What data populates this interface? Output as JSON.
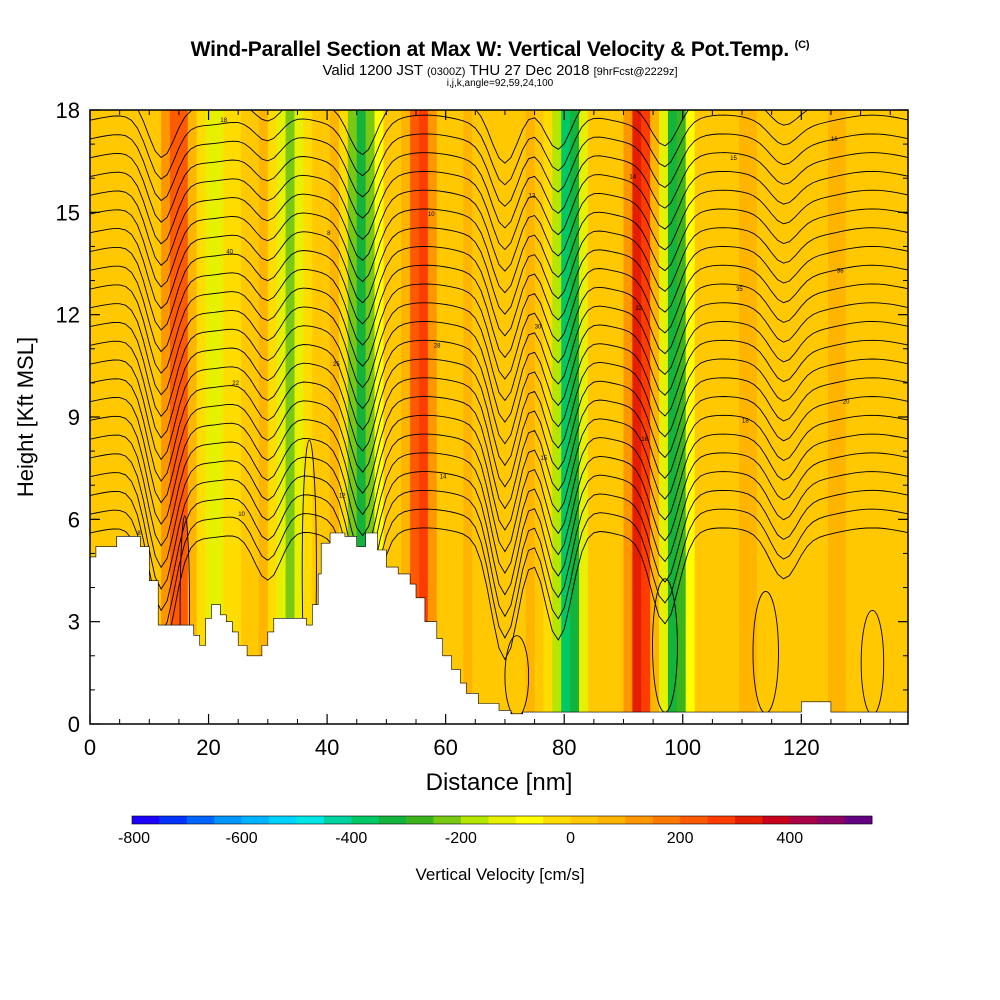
{
  "title": {
    "main": "Wind-Parallel Section at Max W: Vertical Velocity & Pot.Temp.",
    "copyright": "(C)",
    "valid_prefix": "Valid 1200 JST",
    "valid_utc": "(0300Z)",
    "valid_date": "THU 27 Dec 2018",
    "forecast": "[9hrFcst@2229z]",
    "indices": "i,j,k,angle=92,59,24,100"
  },
  "chart_data": {
    "type": "heatmap",
    "xlabel": "Distance [nm]",
    "ylabel": "Height [Kft MSL]",
    "xlim": [
      0,
      138
    ],
    "ylim": [
      0,
      18
    ],
    "x_ticks": [
      0,
      20,
      40,
      60,
      80,
      100,
      120
    ],
    "y_ticks": [
      0,
      3,
      6,
      9,
      12,
      15,
      18
    ],
    "colorbar": {
      "label": "Vertical Velocity [cm/s]",
      "range": [
        -800,
        550
      ],
      "tick_values": [
        -800,
        -600,
        -400,
        -200,
        0,
        200,
        400
      ],
      "tick_labels": [
        "-800",
        "-600",
        "-400",
        "-200",
        "0",
        "200",
        "400"
      ],
      "colors": [
        "#1e00ff",
        "#0032ff",
        "#0064ff",
        "#0096ff",
        "#00b4ff",
        "#00d2ff",
        "#00e6e6",
        "#00d2a0",
        "#00c864",
        "#14b43c",
        "#3cb41e",
        "#78c814",
        "#b4e600",
        "#e6f000",
        "#ffff00",
        "#ffdc00",
        "#ffc800",
        "#ffb400",
        "#ff9600",
        "#ff7800",
        "#ff5a00",
        "#ff3c00",
        "#e61e00",
        "#c8001e",
        "#aa0046",
        "#8c0064",
        "#640082"
      ]
    },
    "velocity_bands": [
      {
        "x": 14,
        "value": 250,
        "note": "updraft"
      },
      {
        "x": 20,
        "value": -130,
        "note": "downdraft"
      },
      {
        "x": 28,
        "value": 60
      },
      {
        "x": 33,
        "value": -220,
        "note": "downdraft"
      },
      {
        "x": 40,
        "value": 60
      },
      {
        "x": 45,
        "value": -330,
        "note": "downdraft"
      },
      {
        "x": 55,
        "value": 300,
        "note": "updraft"
      },
      {
        "x": 63,
        "value": 60
      },
      {
        "x": 73,
        "value": 60
      },
      {
        "x": 80,
        "value": -380,
        "note": "downdraft"
      },
      {
        "x": 92,
        "value": 320,
        "note": "updraft"
      },
      {
        "x": 98,
        "value": -330,
        "note": "downdraft"
      },
      {
        "x": 110,
        "value": 80
      },
      {
        "x": 125,
        "value": 70
      }
    ],
    "terrain_kft": [
      [
        0,
        4.9
      ],
      [
        1,
        4.9
      ],
      [
        1,
        5.2
      ],
      [
        4.5,
        5.2
      ],
      [
        4.5,
        5.5
      ],
      [
        8.5,
        5.5
      ],
      [
        8.5,
        5.2
      ],
      [
        10,
        5.2
      ],
      [
        10,
        4.2
      ],
      [
        11.5,
        4.2
      ],
      [
        11.5,
        2.9
      ],
      [
        17.5,
        2.9
      ],
      [
        17.5,
        2.6
      ],
      [
        18.5,
        2.6
      ],
      [
        18.5,
        2.3
      ],
      [
        19.5,
        2.3
      ],
      [
        19.5,
        3.1
      ],
      [
        20.5,
        3.1
      ],
      [
        20.5,
        3.5
      ],
      [
        22,
        3.5
      ],
      [
        22,
        3.2
      ],
      [
        23,
        3.2
      ],
      [
        23,
        3.0
      ],
      [
        24,
        3.0
      ],
      [
        24,
        2.7
      ],
      [
        25,
        2.7
      ],
      [
        25,
        2.3
      ],
      [
        26.5,
        2.3
      ],
      [
        26.5,
        2.0
      ],
      [
        29,
        2.0
      ],
      [
        29,
        2.3
      ],
      [
        30,
        2.3
      ],
      [
        30,
        2.7
      ],
      [
        31,
        2.7
      ],
      [
        31,
        3.1
      ],
      [
        36.5,
        3.1
      ],
      [
        36.5,
        2.9
      ],
      [
        37.5,
        2.9
      ],
      [
        37.5,
        3.5
      ],
      [
        38.5,
        3.5
      ],
      [
        38.5,
        4.4
      ],
      [
        39,
        4.4
      ],
      [
        39,
        5.3
      ],
      [
        40.5,
        5.3
      ],
      [
        40.5,
        5.6
      ],
      [
        43,
        5.6
      ],
      [
        43,
        5.5
      ],
      [
        45,
        5.5
      ],
      [
        45,
        5.2
      ],
      [
        46.5,
        5.2
      ],
      [
        46.5,
        5.6
      ],
      [
        48.5,
        5.6
      ],
      [
        48.5,
        5.1
      ],
      [
        50,
        5.1
      ],
      [
        50,
        4.6
      ],
      [
        52,
        4.6
      ],
      [
        52,
        4.4
      ],
      [
        54,
        4.4
      ],
      [
        54,
        4.1
      ],
      [
        55,
        4.1
      ],
      [
        55,
        3.7
      ],
      [
        56.5,
        3.7
      ],
      [
        56.5,
        3.0
      ],
      [
        58.5,
        3.0
      ],
      [
        58.5,
        2.5
      ],
      [
        59.5,
        2.5
      ],
      [
        59.5,
        2.0
      ],
      [
        61,
        2.0
      ],
      [
        61,
        1.6
      ],
      [
        62.5,
        1.6
      ],
      [
        62.5,
        1.2
      ],
      [
        63.5,
        1.2
      ],
      [
        63.5,
        0.9
      ],
      [
        65.5,
        0.9
      ],
      [
        65.5,
        0.6
      ],
      [
        69,
        0.6
      ],
      [
        69,
        0.4
      ],
      [
        71,
        0.4
      ],
      [
        71,
        0.3
      ],
      [
        73,
        0.3
      ],
      [
        73,
        0.35
      ],
      [
        120,
        0.35
      ],
      [
        120,
        0.65
      ],
      [
        125,
        0.65
      ],
      [
        125,
        0.35
      ],
      [
        138,
        0.35
      ]
    ],
    "contour_annotations": [
      "8",
      "10",
      "12",
      "14",
      "15",
      "16",
      "18",
      "20",
      "22",
      "25",
      "28",
      "30",
      "32",
      "35",
      "38",
      "40"
    ]
  }
}
